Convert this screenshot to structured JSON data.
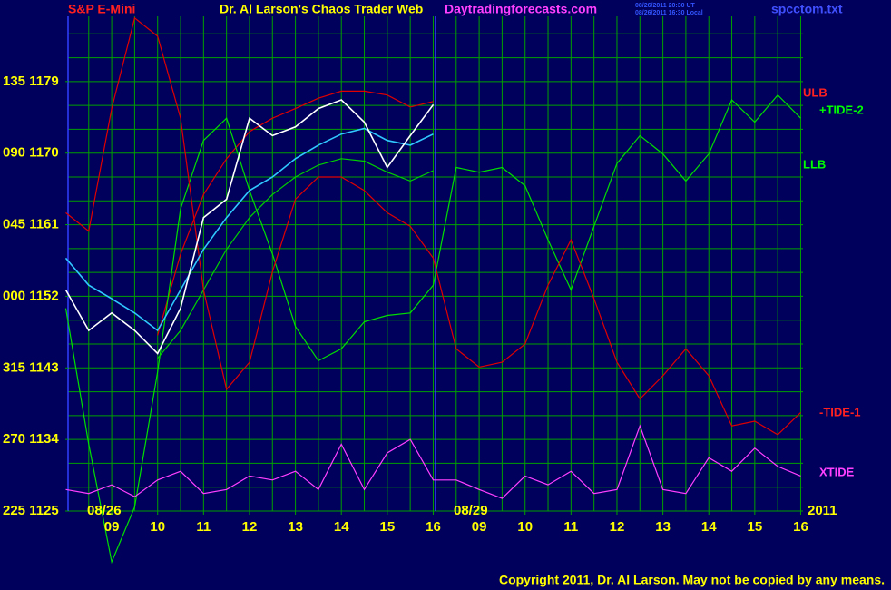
{
  "chart_data": {
    "type": "line",
    "title": "Dr. Al Larson's Chaos Trader Web",
    "subtitle": "Daytradingforecasts.com",
    "instrument": "S&P E-Mini",
    "file": "spcctom.txt",
    "timestamps": [
      "08/26/2011 20:30 UT",
      "08/26/2011 16:30 Local"
    ],
    "copyright": "Copyright 2011, Dr. Al Larson. May not be copied by any means.",
    "annotations": [
      "08/26",
      "08/29",
      "2011"
    ],
    "x": [
      0,
      0.5,
      1,
      1.5,
      2,
      2.5,
      3,
      3.5,
      4,
      4.5,
      5,
      5.5,
      6,
      6.5,
      7,
      7.5,
      8,
      8.5,
      9,
      9.5,
      10,
      10.5,
      11,
      11.5,
      12,
      12.5,
      13,
      13.5,
      14,
      14.5,
      15,
      15.5,
      16
    ],
    "xlim": [
      0.05,
      16.05
    ],
    "xticks": [
      {
        "value": 1,
        "label": "09"
      },
      {
        "value": 2,
        "label": "10"
      },
      {
        "value": 3,
        "label": "11"
      },
      {
        "value": 4,
        "label": "12"
      },
      {
        "value": 5,
        "label": "13"
      },
      {
        "value": 6,
        "label": "14"
      },
      {
        "value": 7,
        "label": "15"
      },
      {
        "value": 8,
        "label": "16"
      },
      {
        "value": 9,
        "label": "09"
      },
      {
        "value": 10,
        "label": "10"
      },
      {
        "value": 11,
        "label": "11"
      },
      {
        "value": 12,
        "label": "12"
      },
      {
        "value": 13,
        "label": "13"
      },
      {
        "value": 14,
        "label": "14"
      },
      {
        "value": 15,
        "label": "15"
      },
      {
        "value": 16,
        "label": "16"
      }
    ],
    "xgrid": [
      0.5,
      1,
      1.5,
      2,
      2.5,
      3,
      3.5,
      4,
      4.5,
      5,
      5.5,
      6,
      6.5,
      7,
      7.5,
      8,
      8.5,
      9,
      9.5,
      10,
      10.5,
      11,
      11.5,
      12,
      12.5,
      13,
      13.5,
      14,
      14.5,
      15,
      15.5,
      16
    ],
    "ylim": [
      1125,
      1187.2
    ],
    "yticks": [
      {
        "value": 1179,
        "label": "135 1179"
      },
      {
        "value": 1170,
        "label": "090 1170"
      },
      {
        "value": 1161,
        "label": "045 1161"
      },
      {
        "value": 1152,
        "label": "000 1152"
      },
      {
        "value": 1143,
        "label": "315 1143"
      },
      {
        "value": 1134,
        "label": "270 1134"
      },
      {
        "value": 1125,
        "label": "225 1125"
      }
    ],
    "ygrid": [
      1125,
      1128,
      1131,
      1134,
      1137,
      1140,
      1143,
      1146,
      1149,
      1152,
      1155,
      1158,
      1161,
      1164,
      1167,
      1170,
      1173,
      1176,
      1179,
      1182,
      1185
    ],
    "grid": true,
    "series": [
      {
        "name": "ULB",
        "color": "#e00000",
        "values": [
          null,
          null,
          null,
          null,
          1147.1,
          1157.3,
          1164.8,
          1169.3,
          1172.7,
          1174.4,
          1175.6,
          1176.9,
          1177.8,
          1177.8,
          1177.3,
          1175.8,
          1176.5,
          null,
          null,
          null,
          null,
          null,
          null,
          null,
          null,
          null,
          null,
          null,
          null,
          null,
          null,
          null,
          null
        ]
      },
      {
        "name": "+TIDE-2",
        "color": "#00e000",
        "values": [
          1150.5,
          1133.4,
          1118.6,
          1125.5,
          1142.5,
          1163.0,
          1171.6,
          1174.4,
          1165.3,
          1157.3,
          1148.2,
          1143.9,
          1145.4,
          1148.8,
          1149.6,
          1149.9,
          1153.4,
          1168.2,
          1167.6,
          1168.2,
          1165.9,
          1159.1,
          1152.8,
          1160.8,
          1168.7,
          1172.2,
          1169.9,
          1166.5,
          1169.9,
          1176.7,
          1173.9,
          1177.3,
          1174.4
        ]
      },
      {
        "name": "LLB",
        "color": "#00d000",
        "values": [
          null,
          null,
          null,
          null,
          1144.2,
          1147.7,
          1152.8,
          1157.9,
          1161.9,
          1164.8,
          1167.0,
          1168.5,
          1169.3,
          1169.0,
          1167.6,
          1166.5,
          1167.8,
          null,
          null,
          null,
          null,
          null,
          null,
          null,
          null,
          null,
          null,
          null,
          null,
          null,
          null,
          null,
          null
        ]
      },
      {
        "name": "-TIDE-1",
        "color": "#e00000",
        "values": [
          1162.5,
          1160.2,
          1175.6,
          1187.0,
          1184.7,
          1174.4,
          1152.8,
          1140.3,
          1143.7,
          1155.1,
          1164.2,
          1167.0,
          1167.0,
          1165.3,
          1162.5,
          1160.8,
          1156.8,
          1145.4,
          1143.1,
          1143.7,
          1146.0,
          1153.4,
          1159.1,
          1151.7,
          1143.7,
          1139.1,
          1142.0,
          1145.4,
          1142.0,
          1135.7,
          1136.3,
          1134.6,
          1137.4
        ]
      },
      {
        "name": "XTIDE",
        "color": "#ff40ff",
        "values": [
          1127.7,
          1127.2,
          1128.3,
          1126.8,
          1128.9,
          1130.0,
          1127.2,
          1127.7,
          1129.4,
          1128.9,
          1130.0,
          1127.7,
          1133.4,
          1127.7,
          1132.3,
          1134.0,
          1128.9,
          1128.9,
          1127.7,
          1126.6,
          1129.4,
          1128.3,
          1130.0,
          1127.2,
          1127.7,
          1135.7,
          1127.7,
          1127.2,
          1131.7,
          1130.0,
          1132.9,
          1130.6,
          1129.4
        ]
      },
      {
        "color": "#30c8ff",
        "values": [
          1156.8,
          1153.4,
          1151.7,
          1149.9,
          1147.7,
          1152.8,
          1157.9,
          1161.9,
          1165.3,
          1167.0,
          1169.3,
          1171.0,
          1172.4,
          1173.1,
          1171.6,
          1171.0,
          1172.4,
          null,
          null,
          null,
          null,
          null,
          null,
          null,
          null,
          null,
          null,
          null,
          null,
          null,
          null,
          null,
          null
        ]
      },
      {
        "color": "#ffffff",
        "values": [
          1152.8,
          1147.7,
          1149.9,
          1147.7,
          1144.8,
          1150.5,
          1161.9,
          1164.2,
          1174.4,
          1172.2,
          1173.3,
          1175.6,
          1176.7,
          1173.9,
          1168.2,
          1172.2,
          1176.1,
          null,
          null,
          null,
          null,
          null,
          null,
          null,
          null,
          null,
          null,
          null,
          null,
          null,
          null,
          null,
          null
        ]
      }
    ]
  }
}
